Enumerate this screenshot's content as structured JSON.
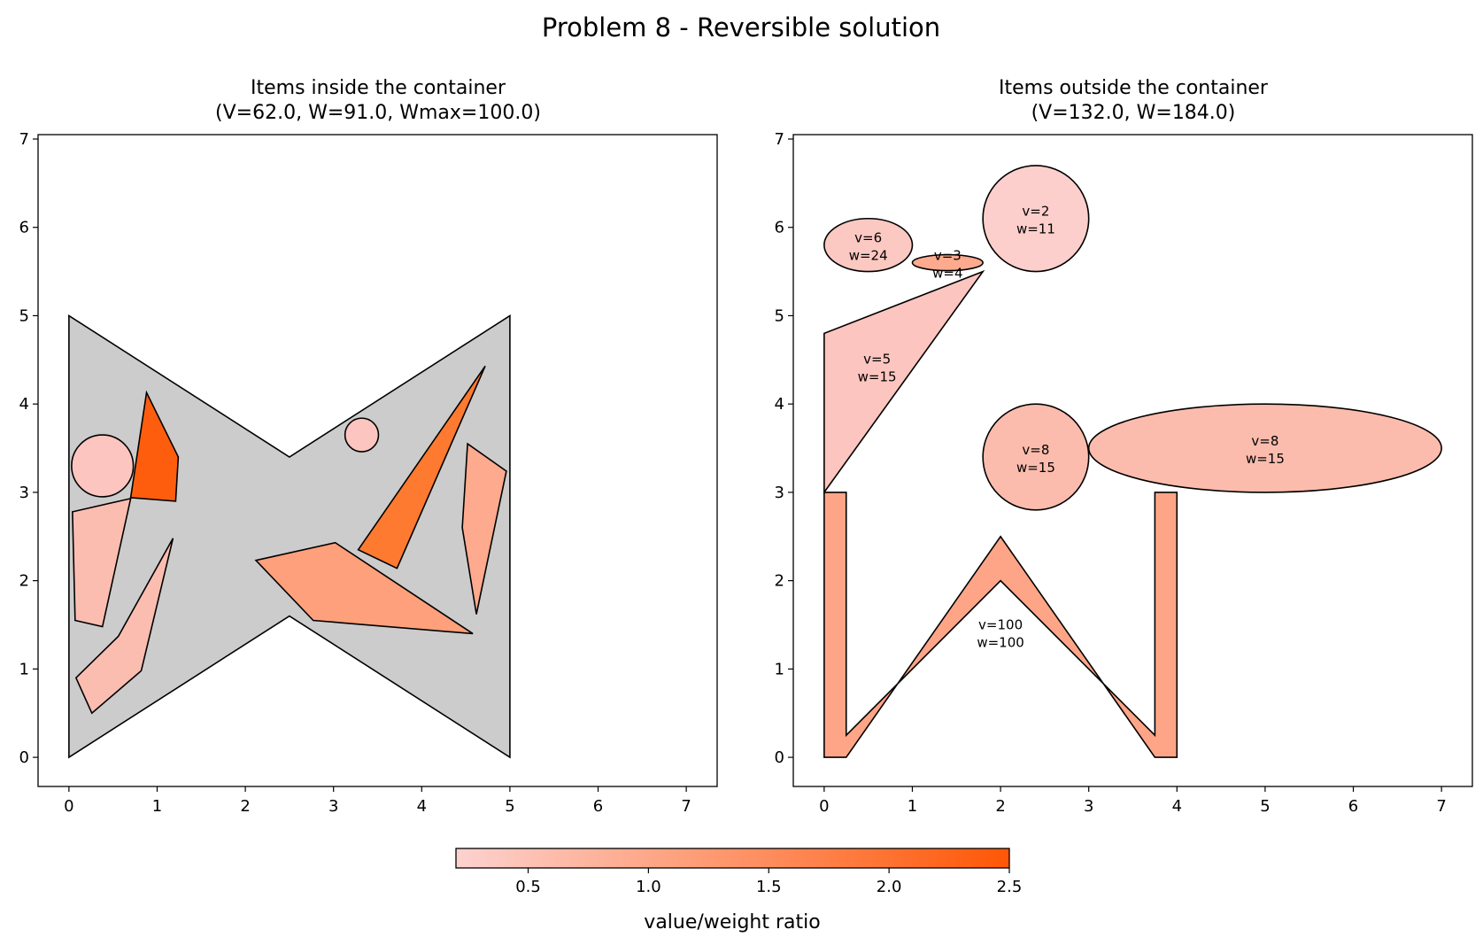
{
  "suptitle": "Problem 8 - Reversible solution",
  "chart_data": [
    {
      "type": "polygon-plot",
      "title_line1": "Items inside the container",
      "title_line2": "(V=62.0, W=91.0, Wmax=100.0)",
      "xlim": [
        -0.35,
        7.35
      ],
      "ylim": [
        -0.33,
        7.05
      ],
      "xticks": [
        0,
        1,
        2,
        3,
        4,
        5,
        6,
        7
      ],
      "yticks": [
        0,
        1,
        2,
        3,
        4,
        5,
        6,
        7
      ],
      "container": {
        "color": "#cccccc",
        "points": [
          [
            0,
            0
          ],
          [
            2.5,
            1.6
          ],
          [
            5,
            0
          ],
          [
            5,
            5
          ],
          [
            2.5,
            3.4
          ],
          [
            0,
            5
          ]
        ]
      },
      "items": [
        {
          "shape": "circle",
          "cx": 0.38,
          "cy": 3.3,
          "r": 0.35,
          "color": "#fcc5bf"
        },
        {
          "shape": "circle",
          "cx": 3.32,
          "cy": 3.65,
          "r": 0.19,
          "color": "#fcc5bf"
        },
        {
          "shape": "polygon",
          "color": "#fe5d0e",
          "points": [
            [
              0.88,
              4.13
            ],
            [
              1.24,
              3.4
            ],
            [
              1.21,
              2.9
            ],
            [
              0.7,
              2.94
            ]
          ]
        },
        {
          "shape": "polygon",
          "color": "#fcbdb1",
          "points": [
            [
              0.04,
              2.78
            ],
            [
              0.7,
              2.93
            ],
            [
              0.38,
              1.48
            ],
            [
              0.07,
              1.55
            ]
          ]
        },
        {
          "shape": "polygon",
          "color": "#fcbdb1",
          "points": [
            [
              0.08,
              0.9
            ],
            [
              0.56,
              1.37
            ],
            [
              1.18,
              2.48
            ],
            [
              0.82,
              0.98
            ],
            [
              0.26,
              0.5
            ]
          ]
        },
        {
          "shape": "polygon",
          "color": "#fe7a30",
          "points": [
            [
              3.28,
              2.35
            ],
            [
              4.72,
              4.43
            ],
            [
              3.72,
              2.14
            ]
          ]
        },
        {
          "shape": "polygon",
          "color": "#fea07b",
          "points": [
            [
              2.12,
              2.23
            ],
            [
              3.02,
              2.43
            ],
            [
              4.58,
              1.4
            ],
            [
              2.77,
              1.55
            ]
          ]
        },
        {
          "shape": "polygon",
          "color": "#fdaa8e",
          "points": [
            [
              4.52,
              3.55
            ],
            [
              4.96,
              3.24
            ],
            [
              4.62,
              1.62
            ],
            [
              4.46,
              2.6
            ]
          ]
        }
      ]
    },
    {
      "type": "polygon-plot",
      "title_line1": "Items outside the container",
      "title_line2": "(V=132.0, W=184.0)",
      "xlim": [
        -0.35,
        7.35
      ],
      "ylim": [
        -0.33,
        7.05
      ],
      "xticks": [
        0,
        1,
        2,
        3,
        4,
        5,
        6,
        7
      ],
      "yticks": [
        0,
        1,
        2,
        3,
        4,
        5,
        6,
        7
      ],
      "items": [
        {
          "shape": "ellipse",
          "cx": 0.5,
          "cy": 5.8,
          "rx": 0.5,
          "ry": 0.3,
          "color": "#fcc8c2",
          "label": [
            "v=6",
            "w=24"
          ],
          "lx": 0.5,
          "ly": 5.8
        },
        {
          "shape": "ellipse",
          "cx": 1.4,
          "cy": 5.6,
          "rx": 0.4,
          "ry": 0.09,
          "color": "#fdaa8e",
          "label": [
            "v=3",
            "w=4"
          ],
          "lx": 1.4,
          "ly": 5.6
        },
        {
          "shape": "circle",
          "cx": 2.4,
          "cy": 6.1,
          "r": 0.6,
          "color": "#fdcfcc",
          "label": [
            "v=2",
            "w=11"
          ],
          "lx": 2.4,
          "ly": 6.1
        },
        {
          "shape": "polygon",
          "color": "#fcc5bf",
          "points": [
            [
              0,
              3
            ],
            [
              0,
              4.8
            ],
            [
              1.8,
              5.5
            ]
          ],
          "label": [
            "v=5",
            "w=15"
          ],
          "lx": 0.6,
          "ly": 4.43
        },
        {
          "shape": "circle",
          "cx": 2.4,
          "cy": 3.4,
          "r": 0.6,
          "color": "#fcbcad",
          "label": [
            "v=8",
            "w=15"
          ],
          "lx": 2.4,
          "ly": 3.4
        },
        {
          "shape": "ellipse",
          "cx": 5.0,
          "cy": 3.5,
          "rx": 2.0,
          "ry": 0.5,
          "color": "#fcbcad",
          "label": [
            "v=8",
            "w=15"
          ],
          "lx": 5.0,
          "ly": 3.5
        },
        {
          "shape": "polygon",
          "color": "#fea587",
          "points": [
            [
              0,
              0
            ],
            [
              0,
              3
            ],
            [
              0.25,
              3
            ],
            [
              0.25,
              0.25
            ],
            [
              2,
              2
            ],
            [
              3.75,
              0.25
            ],
            [
              3.75,
              3
            ],
            [
              4,
              3
            ],
            [
              4,
              0
            ],
            [
              3.75,
              0
            ],
            [
              2,
              2.5
            ],
            [
              0.25,
              0
            ]
          ],
          "label": [
            "v=100",
            "w=100"
          ],
          "lx": 2.0,
          "ly": 1.42
        }
      ]
    }
  ],
  "colorbar": {
    "label": "value/weight ratio",
    "min": 0.2,
    "max": 2.5,
    "ticks": [
      0.5,
      1.0,
      1.5,
      2.0,
      2.5
    ],
    "tick_labels": [
      "0.5",
      "1.0",
      "1.5",
      "2.0",
      "2.5"
    ],
    "color_start": "#fdd2cf",
    "color_end": "#fe5705"
  }
}
